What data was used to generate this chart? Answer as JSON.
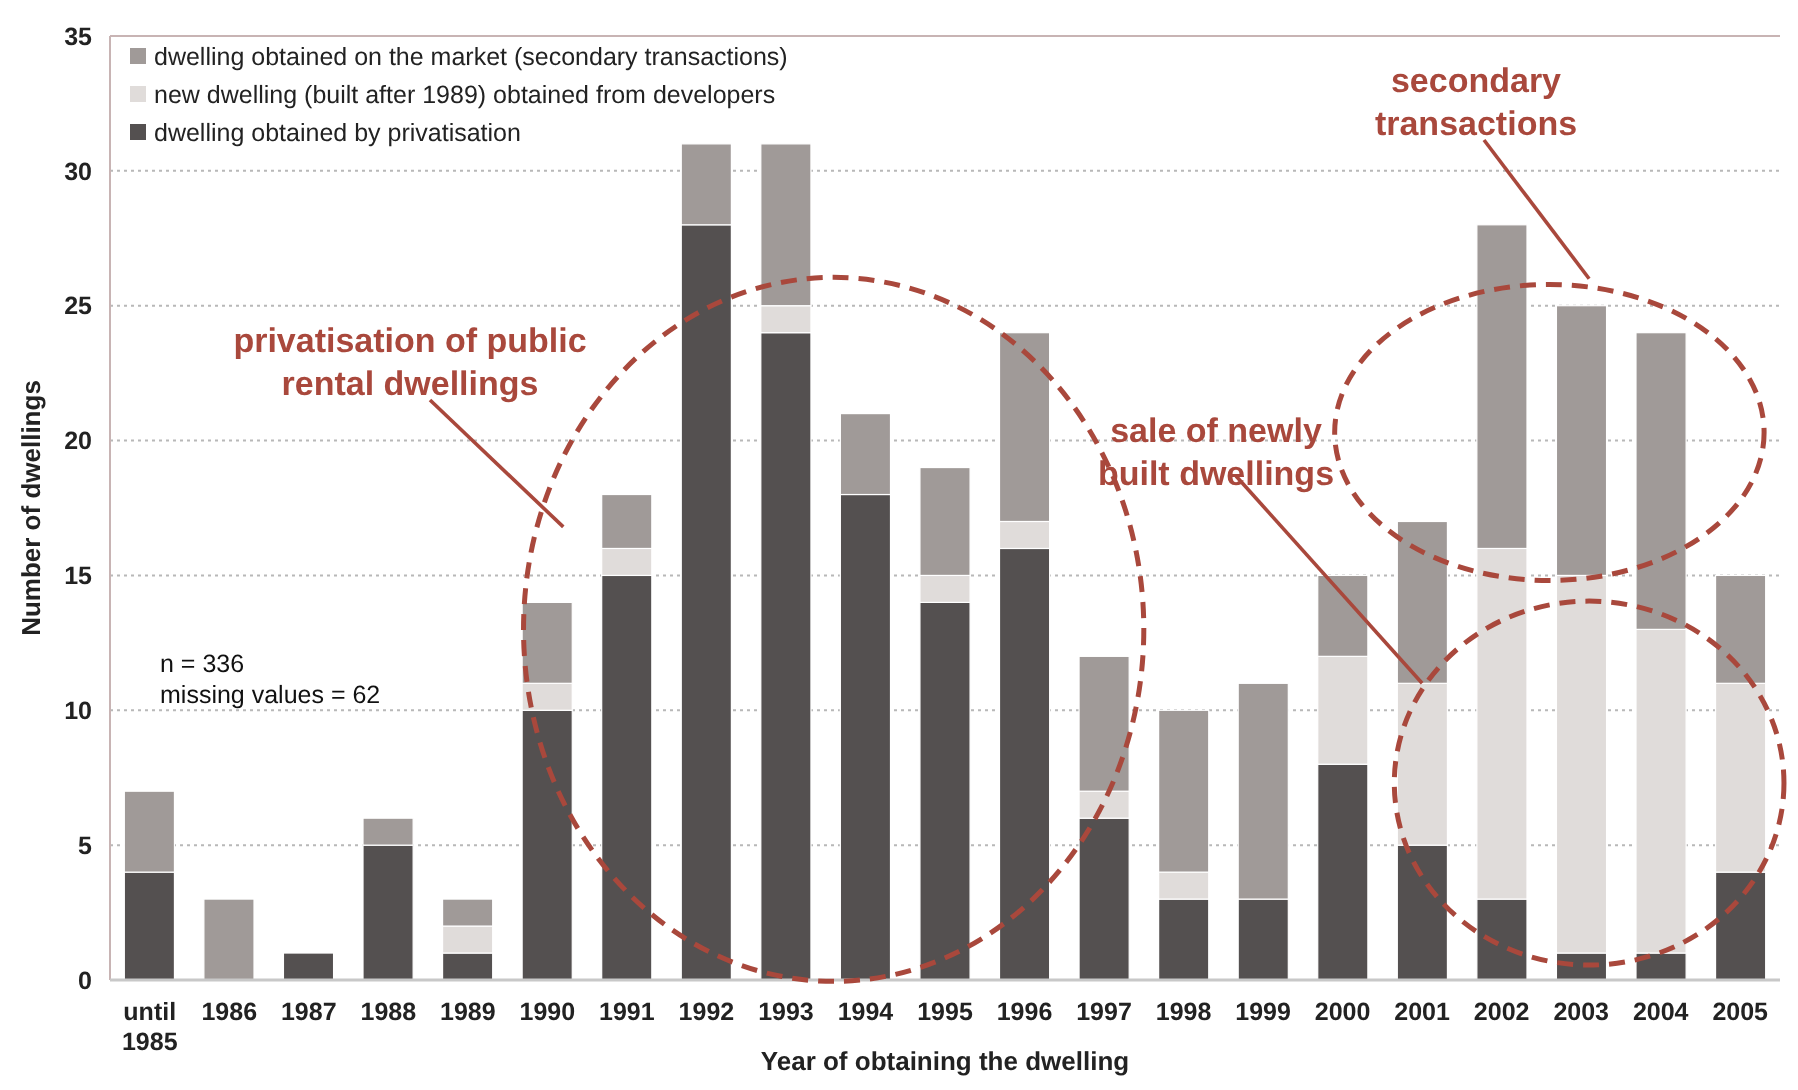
{
  "chart_data": {
    "type": "bar",
    "stacked": true,
    "xlabel": "Year of obtaining the dwelling",
    "ylabel": "Number of dwellings",
    "categories": [
      "until\n1985",
      "1986",
      "1987",
      "1988",
      "1989",
      "1990",
      "1991",
      "1992",
      "1993",
      "1994",
      "1995",
      "1996",
      "1997",
      "1998",
      "1999",
      "2000",
      "2001",
      "2002",
      "2003",
      "2004",
      "2005"
    ],
    "series": [
      {
        "name": "dwelling obtained by privatisation",
        "color": "#545050",
        "values": [
          4,
          0,
          1,
          5,
          1,
          10,
          15,
          28,
          24,
          18,
          14,
          16,
          6,
          3,
          3,
          8,
          5,
          3,
          1,
          1,
          4
        ]
      },
      {
        "name": "new dwelling (built after 1989) obtained from developers",
        "color": "#e0dcda",
        "values": [
          0,
          0,
          0,
          0,
          1,
          1,
          1,
          0,
          1,
          0,
          1,
          1,
          1,
          1,
          0,
          4,
          6,
          13,
          14,
          12,
          7
        ]
      },
      {
        "name": "dwelling obtained on the market (secondary transactions)",
        "color": "#a09a98",
        "values": [
          3,
          3,
          0,
          1,
          1,
          3,
          2,
          3,
          6,
          3,
          4,
          7,
          5,
          6,
          8,
          3,
          6,
          12,
          10,
          11,
          4
        ]
      }
    ],
    "ylim": [
      0,
      35
    ],
    "yticks": [
      0,
      5,
      10,
      15,
      20,
      25,
      30,
      35
    ],
    "grid": "y",
    "legend": "top left",
    "annotations": [
      "n = 336\nmissing values = 62",
      "privatisation of public\nrental dwellings",
      "secondary\ntransactions",
      {
        "text": "sale of newly\nbuilt dwellings",
        "x": "2001",
        "y": 11
      }
    ]
  }
}
